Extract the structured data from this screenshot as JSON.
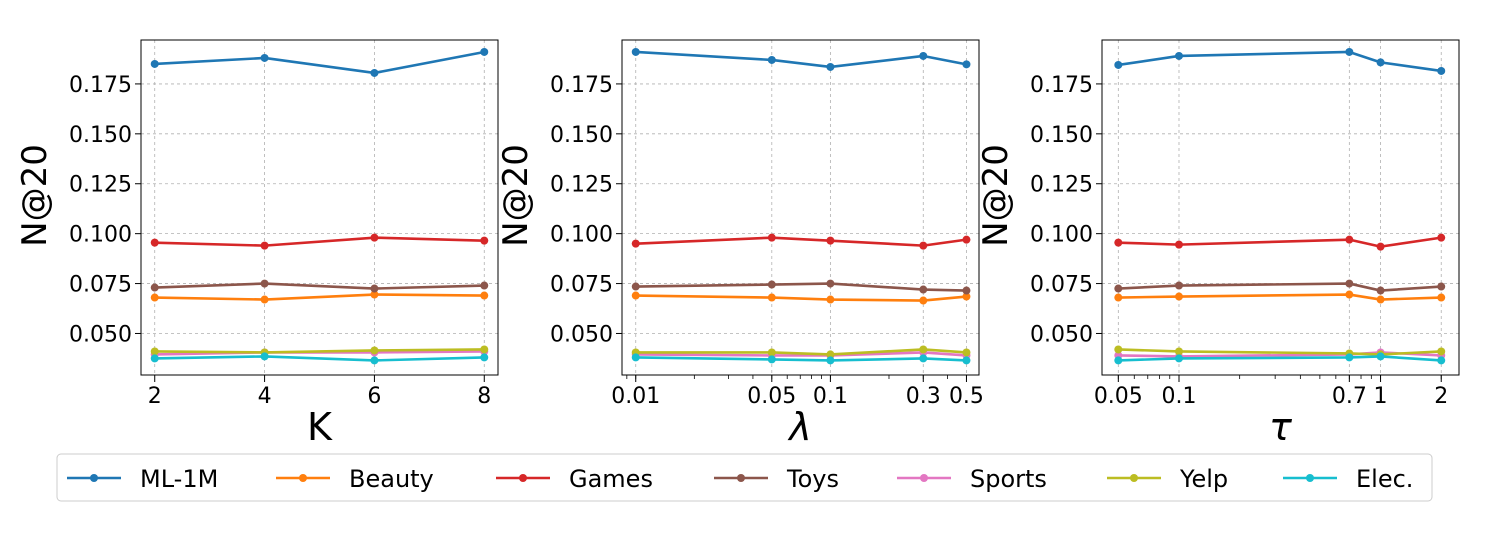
{
  "chart_data": [
    {
      "type": "line",
      "xlabel": "K",
      "ylabel": "N@20",
      "xscale": "linear",
      "xlim": [
        1.75,
        8.25
      ],
      "ylim": [
        0.0292,
        0.197
      ],
      "x": [
        2,
        4,
        6,
        8
      ],
      "xtick_labels": [
        "2",
        "4",
        "6",
        "8"
      ],
      "yticks": [
        0.05,
        0.075,
        0.1,
        0.125,
        0.15,
        0.175
      ],
      "ytick_labels": [
        "0.050",
        "0.075",
        "0.100",
        "0.125",
        "0.150",
        "0.175"
      ],
      "grid": true,
      "series": [
        {
          "name": "ML-1M",
          "values": [
            0.185,
            0.188,
            0.1805,
            0.191
          ]
        },
        {
          "name": "Beauty",
          "values": [
            0.068,
            0.067,
            0.0695,
            0.069
          ]
        },
        {
          "name": "Games",
          "values": [
            0.0955,
            0.094,
            0.098,
            0.0965
          ]
        },
        {
          "name": "Toys",
          "values": [
            0.073,
            0.075,
            0.0725,
            0.074
          ]
        },
        {
          "name": "Sports",
          "values": [
            0.0395,
            0.0405,
            0.0405,
            0.041
          ]
        },
        {
          "name": "Yelp",
          "values": [
            0.041,
            0.0405,
            0.0415,
            0.042
          ]
        },
        {
          "name": "Elec.",
          "values": [
            0.0375,
            0.0385,
            0.0365,
            0.038
          ]
        }
      ]
    },
    {
      "type": "line",
      "xlabel": "λ",
      "ylabel": "N@20",
      "xscale": "log",
      "xlim": [
        0.0085,
        0.58
      ],
      "ylim": [
        0.0292,
        0.197
      ],
      "x": [
        0.01,
        0.05,
        0.1,
        0.3,
        0.5
      ],
      "xtick_labels": [
        "0.01",
        "0.05",
        "0.1",
        "0.3",
        "0.5"
      ],
      "yticks": [
        0.05,
        0.075,
        0.1,
        0.125,
        0.15,
        0.175
      ],
      "ytick_labels": [
        "0.050",
        "0.075",
        "0.100",
        "0.125",
        "0.150",
        "0.175"
      ],
      "grid": true,
      "series": [
        {
          "name": "ML-1M",
          "values": [
            0.191,
            0.187,
            0.1835,
            0.189,
            0.1848
          ]
        },
        {
          "name": "Beauty",
          "values": [
            0.069,
            0.068,
            0.067,
            0.0665,
            0.0685
          ]
        },
        {
          "name": "Games",
          "values": [
            0.095,
            0.098,
            0.0965,
            0.094,
            0.097
          ]
        },
        {
          "name": "Toys",
          "values": [
            0.0735,
            0.0745,
            0.075,
            0.072,
            0.0715
          ]
        },
        {
          "name": "Sports",
          "values": [
            0.0395,
            0.039,
            0.039,
            0.0405,
            0.039
          ]
        },
        {
          "name": "Yelp",
          "values": [
            0.0405,
            0.0405,
            0.0395,
            0.042,
            0.0405
          ]
        },
        {
          "name": "Elec.",
          "values": [
            0.038,
            0.037,
            0.0365,
            0.0375,
            0.0365
          ]
        }
      ]
    },
    {
      "type": "line",
      "xlabel": "τ",
      "ylabel": "N@20",
      "xscale": "log",
      "xlim": [
        0.0415,
        2.45
      ],
      "ylim": [
        0.0292,
        0.197
      ],
      "x": [
        0.05,
        0.1,
        0.7,
        1,
        2
      ],
      "xtick_labels": [
        "0.05",
        "0.1",
        "0.7",
        "1",
        "2"
      ],
      "yticks": [
        0.05,
        0.075,
        0.1,
        0.125,
        0.15,
        0.175
      ],
      "ytick_labels": [
        "0.050",
        "0.075",
        "0.100",
        "0.125",
        "0.150",
        "0.175"
      ],
      "grid": true,
      "series": [
        {
          "name": "ML-1M",
          "values": [
            0.1845,
            0.189,
            0.191,
            0.1858,
            0.1815
          ]
        },
        {
          "name": "Beauty",
          "values": [
            0.068,
            0.0685,
            0.0695,
            0.067,
            0.068
          ]
        },
        {
          "name": "Games",
          "values": [
            0.0955,
            0.0945,
            0.097,
            0.0935,
            0.098
          ]
        },
        {
          "name": "Toys",
          "values": [
            0.0725,
            0.074,
            0.075,
            0.0715,
            0.0735
          ]
        },
        {
          "name": "Sports",
          "values": [
            0.039,
            0.0385,
            0.0395,
            0.0405,
            0.039
          ]
        },
        {
          "name": "Yelp",
          "values": [
            0.042,
            0.041,
            0.04,
            0.0395,
            0.041
          ]
        },
        {
          "name": "Elec.",
          "values": [
            0.0365,
            0.0375,
            0.038,
            0.0385,
            0.0365
          ]
        }
      ]
    }
  ],
  "legend": {
    "placement": "bottom",
    "items": [
      "ML-1M",
      "Beauty",
      "Games",
      "Toys",
      "Sports",
      "Yelp",
      "Elec."
    ]
  },
  "colors": {
    "ML-1M": "#1f77b4",
    "Beauty": "#ff7f0e",
    "Games": "#d62728",
    "Toys": "#8c564b",
    "Sports": "#e377c2",
    "Yelp": "#bcbd22",
    "Elec.": "#17becf"
  }
}
